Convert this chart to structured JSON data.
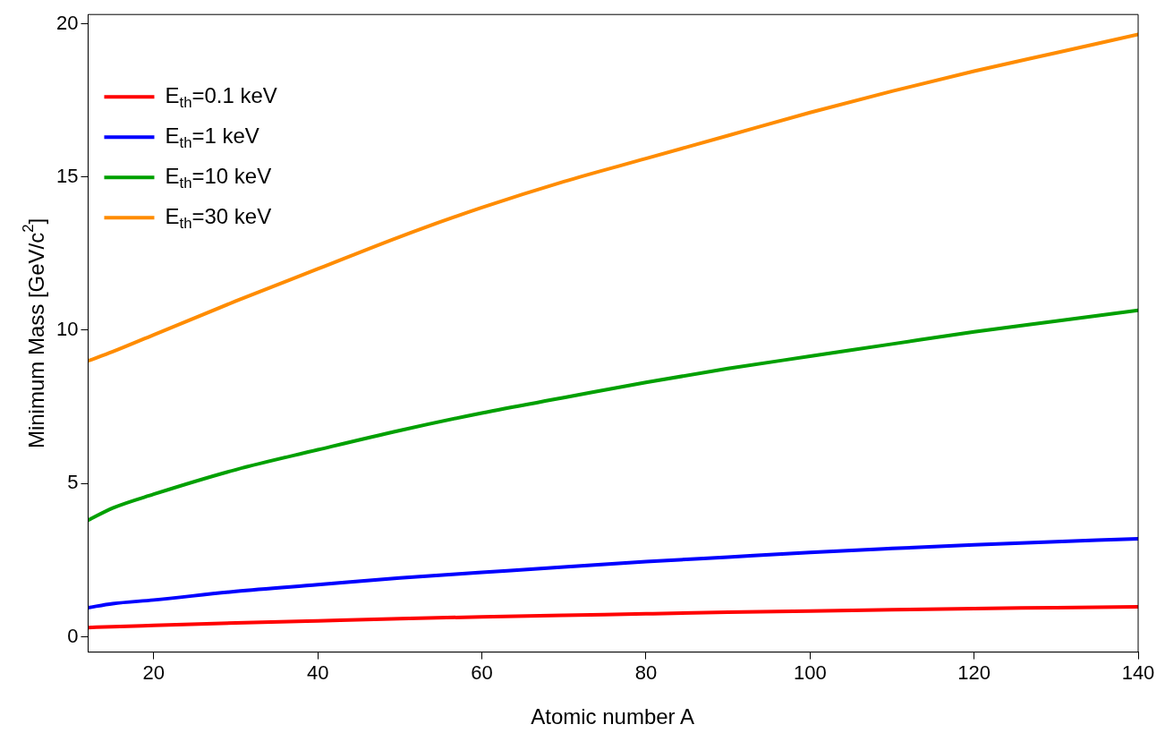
{
  "chart_data": {
    "type": "line",
    "xlabel": "Atomic number A",
    "ylabel": "Minimum Mass [GeV/c$^{2}$]",
    "xlim": [
      12,
      140
    ],
    "xticks": [
      20,
      40,
      60,
      80,
      100,
      120,
      140
    ],
    "ylim": [
      -0.5,
      20.3
    ],
    "yticks": [
      0,
      5,
      10,
      15,
      20
    ],
    "x": [
      12,
      15,
      20,
      30,
      40,
      50,
      60,
      70,
      80,
      90,
      100,
      110,
      120,
      130,
      140
    ],
    "series": [
      {
        "name": "E$_{th}$=0.1 keV",
        "color": "#ff0000",
        "values": [
          0.3,
          0.33,
          0.37,
          0.45,
          0.52,
          0.59,
          0.65,
          0.7,
          0.75,
          0.8,
          0.84,
          0.88,
          0.92,
          0.95,
          0.98
        ]
      },
      {
        "name": "E$_{th}$=1 keV",
        "color": "#0000ff",
        "values": [
          0.95,
          1.08,
          1.2,
          1.48,
          1.7,
          1.92,
          2.1,
          2.28,
          2.45,
          2.6,
          2.75,
          2.88,
          3.0,
          3.1,
          3.2
        ]
      },
      {
        "name": "E$_{th}$=10 keV",
        "color": "#00a000",
        "values": [
          3.8,
          4.2,
          4.65,
          5.45,
          6.1,
          6.73,
          7.3,
          7.8,
          8.3,
          8.75,
          9.15,
          9.55,
          9.95,
          10.3,
          10.65
        ]
      },
      {
        "name": "E$_{th}$=30 keV",
        "color": "#ff8c00",
        "values": [
          9.0,
          9.3,
          9.85,
          10.95,
          12.0,
          13.05,
          14.0,
          14.85,
          15.6,
          16.35,
          17.1,
          17.8,
          18.45,
          19.05,
          19.65
        ]
      }
    ],
    "grid": false,
    "legend": "top left",
    "marker": "none",
    "line_style": "solid"
  }
}
